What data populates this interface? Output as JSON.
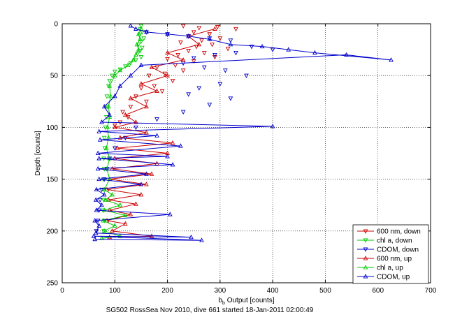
{
  "chart_data": {
    "type": "scatter",
    "xlabel": "b_b Output [counts]",
    "ylabel": "Depth [counts]",
    "xlim": [
      0,
      700
    ],
    "ylim": [
      0,
      250
    ],
    "y_reversed": true,
    "grid": true,
    "legend_position": "bottom-right",
    "x_ticks": [
      "0",
      "100",
      "200",
      "300",
      "400",
      "500",
      "600",
      "700"
    ],
    "y_ticks": [
      "0",
      "50",
      "100",
      "150",
      "200",
      "250"
    ],
    "caption": "SG502 RossSea Nov 2010, dive 661 started 18-Jan-2011 02:00:49",
    "series": [
      {
        "name": "600 nm, down",
        "color": "#cc0000",
        "marker": "triangle-down",
        "line": false,
        "points": [
          [
            230,
            2
          ],
          [
            260,
            4
          ],
          [
            295,
            3
          ],
          [
            330,
            5
          ],
          [
            250,
            8
          ],
          [
            280,
            10
          ],
          [
            240,
            12
          ],
          [
            300,
            14
          ],
          [
            265,
            16
          ],
          [
            225,
            18
          ],
          [
            285,
            20
          ],
          [
            255,
            22
          ],
          [
            315,
            24
          ],
          [
            240,
            26
          ],
          [
            270,
            28
          ],
          [
            220,
            30
          ],
          [
            290,
            32
          ],
          [
            200,
            34
          ],
          [
            250,
            36
          ],
          [
            215,
            40
          ],
          [
            180,
            42
          ],
          [
            230,
            45
          ],
          [
            195,
            48
          ],
          [
            165,
            50
          ],
          [
            210,
            55
          ],
          [
            175,
            60
          ],
          [
            150,
            62
          ],
          [
            190,
            65
          ],
          [
            140,
            70
          ],
          [
            160,
            75
          ],
          [
            130,
            80
          ],
          [
            115,
            85
          ],
          [
            125,
            90
          ],
          [
            110,
            95
          ],
          [
            100,
            98
          ]
        ]
      },
      {
        "name": "chl a, down",
        "color": "#00cc00",
        "marker": "triangle-down",
        "line": false,
        "points": [
          [
            150,
            2
          ],
          [
            148,
            5
          ],
          [
            152,
            8
          ],
          [
            147,
            11
          ],
          [
            155,
            14
          ],
          [
            150,
            17
          ],
          [
            145,
            20
          ],
          [
            152,
            23
          ],
          [
            148,
            26
          ],
          [
            143,
            29
          ],
          [
            150,
            32
          ],
          [
            140,
            35
          ],
          [
            130,
            38
          ],
          [
            120,
            41
          ],
          [
            110,
            44
          ],
          [
            100,
            46
          ],
          [
            95,
            50
          ],
          [
            90,
            55
          ],
          [
            88,
            60
          ],
          [
            85,
            70
          ],
          [
            86,
            80
          ],
          [
            84,
            90
          ],
          [
            82,
            100
          ],
          [
            80,
            110
          ],
          [
            81,
            120
          ],
          [
            79,
            130
          ],
          [
            80,
            140
          ],
          [
            78,
            150
          ],
          [
            80,
            160
          ],
          [
            79,
            170
          ],
          [
            78,
            180
          ],
          [
            80,
            190
          ],
          [
            79,
            200
          ]
        ]
      },
      {
        "name": "CDOM, down",
        "color": "#0000cc",
        "marker": "triangle-down",
        "line": false,
        "points": [
          [
            160,
            8
          ],
          [
            200,
            10
          ],
          [
            240,
            12
          ],
          [
            280,
            14
          ],
          [
            320,
            16
          ],
          [
            360,
            22
          ],
          [
            400,
            25
          ],
          [
            330,
            28
          ],
          [
            290,
            30
          ],
          [
            250,
            33
          ],
          [
            230,
            38
          ],
          [
            270,
            42
          ],
          [
            310,
            45
          ],
          [
            350,
            50
          ],
          [
            300,
            58
          ],
          [
            260,
            62
          ],
          [
            240,
            68
          ],
          [
            320,
            72
          ],
          [
            280,
            78
          ],
          [
            230,
            85
          ],
          [
            180,
            92
          ],
          [
            140,
            100
          ],
          [
            120,
            110
          ],
          [
            100,
            120
          ],
          [
            90,
            130
          ],
          [
            85,
            140
          ],
          [
            80,
            150
          ],
          [
            75,
            160
          ],
          [
            72,
            170
          ],
          [
            70,
            180
          ],
          [
            68,
            190
          ],
          [
            65,
            200
          ]
        ]
      },
      {
        "name": "600 nm, up",
        "color": "#cc0000",
        "marker": "triangle-up",
        "line": true,
        "points": [
          [
            90,
            206
          ],
          [
            170,
            205
          ],
          [
            95,
            200
          ],
          [
            120,
            193
          ],
          [
            85,
            190
          ],
          [
            130,
            184
          ],
          [
            90,
            180
          ],
          [
            140,
            174
          ],
          [
            88,
            170
          ],
          [
            150,
            165
          ],
          [
            85,
            160
          ],
          [
            160,
            155
          ],
          [
            90,
            150
          ],
          [
            170,
            145
          ],
          [
            95,
            140
          ],
          [
            180,
            135
          ],
          [
            100,
            130
          ],
          [
            200,
            125
          ],
          [
            105,
            120
          ],
          [
            210,
            115
          ],
          [
            110,
            110
          ],
          [
            160,
            105
          ],
          [
            100,
            100
          ],
          [
            140,
            95
          ],
          [
            120,
            88
          ],
          [
            160,
            80
          ],
          [
            130,
            72
          ],
          [
            180,
            65
          ],
          [
            150,
            58
          ],
          [
            200,
            50
          ],
          [
            170,
            42
          ],
          [
            230,
            35
          ],
          [
            200,
            28
          ],
          [
            260,
            20
          ],
          [
            240,
            12
          ],
          [
            290,
            5
          ]
        ]
      },
      {
        "name": "chl a, up",
        "color": "#00cc00",
        "marker": "triangle-up",
        "line": true,
        "points": [
          [
            75,
            207
          ],
          [
            110,
            205
          ],
          [
            80,
            200
          ],
          [
            100,
            195
          ],
          [
            78,
            190
          ],
          [
            120,
            185
          ],
          [
            80,
            180
          ],
          [
            110,
            175
          ],
          [
            82,
            170
          ],
          [
            95,
            165
          ],
          [
            80,
            160
          ],
          [
            90,
            150
          ],
          [
            85,
            140
          ],
          [
            90,
            130
          ],
          [
            84,
            120
          ],
          [
            88,
            110
          ],
          [
            86,
            100
          ],
          [
            90,
            90
          ],
          [
            88,
            80
          ],
          [
            92,
            70
          ],
          [
            90,
            60
          ],
          [
            100,
            50
          ],
          [
            110,
            45
          ],
          [
            125,
            40
          ],
          [
            135,
            35
          ],
          [
            140,
            30
          ],
          [
            145,
            25
          ],
          [
            142,
            20
          ],
          [
            148,
            15
          ],
          [
            145,
            10
          ],
          [
            150,
            5
          ]
        ]
      },
      {
        "name": "CDOM, up",
        "color": "#0000cc",
        "marker": "triangle-up",
        "line": true,
        "points": [
          [
            62,
            208
          ],
          [
            265,
            209
          ],
          [
            60,
            205
          ],
          [
            245,
            206
          ],
          [
            64,
            202
          ],
          [
            70,
            195
          ],
          [
            62,
            190
          ],
          [
            205,
            184
          ],
          [
            65,
            180
          ],
          [
            75,
            175
          ],
          [
            64,
            170
          ],
          [
            80,
            165
          ],
          [
            65,
            160
          ],
          [
            150,
            155
          ],
          [
            70,
            150
          ],
          [
            160,
            145
          ],
          [
            68,
            140
          ],
          [
            210,
            136
          ],
          [
            70,
            130
          ],
          [
            200,
            128
          ],
          [
            68,
            125
          ],
          [
            225,
            118
          ],
          [
            72,
            112
          ],
          [
            180,
            108
          ],
          [
            70,
            104
          ],
          [
            400,
            99
          ],
          [
            75,
            95
          ],
          [
            90,
            88
          ],
          [
            80,
            80
          ],
          [
            100,
            70
          ],
          [
            110,
            60
          ],
          [
            130,
            50
          ],
          [
            150,
            40
          ],
          [
            540,
            30
          ],
          [
            625,
            35
          ],
          [
            480,
            28
          ],
          [
            430,
            25
          ],
          [
            380,
            22
          ],
          [
            320,
            20
          ],
          [
            280,
            15
          ],
          [
            240,
            12
          ],
          [
            200,
            10
          ],
          [
            160,
            8
          ],
          [
            140,
            5
          ],
          [
            130,
            2
          ]
        ]
      }
    ]
  }
}
